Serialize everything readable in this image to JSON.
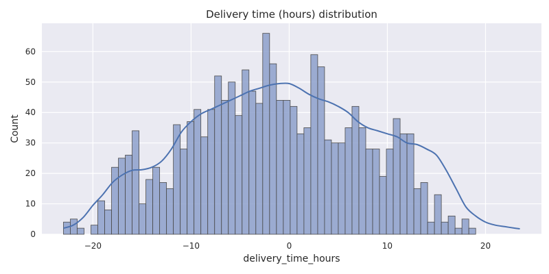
{
  "chart_data": {
    "type": "bar",
    "subtype": "histogram_with_kde",
    "title": "Delivery time (hours) distribution",
    "xlabel": "delivery_time_hours",
    "ylabel": "Count",
    "xlim": [
      -25.2,
      25.7
    ],
    "ylim": [
      0,
      69.3
    ],
    "xticks": [
      -20,
      -10,
      0,
      10,
      20
    ],
    "xtick_labels": [
      "−20",
      "−10",
      "0",
      "10",
      "20"
    ],
    "yticks": [
      0,
      10,
      20,
      30,
      40,
      50,
      60
    ],
    "grid": true,
    "legend": "none",
    "bin_start": -23.0,
    "bin_width": 0.7,
    "counts": [
      4,
      5,
      2,
      0,
      3,
      11,
      8,
      22,
      25,
      26,
      34,
      10,
      18,
      22,
      17,
      15,
      36,
      28,
      37,
      41,
      32,
      41,
      52,
      44,
      50,
      39,
      54,
      47,
      43,
      66,
      56,
      44,
      44,
      42,
      33,
      35,
      59,
      55,
      31,
      30,
      30,
      35,
      42,
      35,
      28,
      28,
      19,
      28,
      38,
      33,
      33,
      15,
      17,
      4,
      13,
      4,
      6,
      2,
      5,
      2
    ],
    "kde": {
      "x": [
        -23,
        -22,
        -21,
        -20,
        -19,
        -18,
        -17,
        -16,
        -15,
        -14,
        -13,
        -12,
        -11,
        -10,
        -9,
        -8,
        -7,
        -6,
        -5,
        -4,
        -3,
        -2,
        -1,
        0,
        1,
        2,
        3,
        4,
        5,
        6,
        7,
        8,
        9,
        10,
        11,
        12,
        13,
        14,
        15,
        16,
        17,
        18,
        19,
        20,
        21,
        22,
        23,
        23.5
      ],
      "y": [
        2,
        3,
        5.5,
        9.5,
        13,
        17,
        19.5,
        21,
        21.2,
        22,
        24,
        28,
        33.5,
        37,
        39.5,
        41,
        42.5,
        44,
        45.5,
        47,
        48,
        49,
        49.5,
        49.5,
        48,
        46,
        44.5,
        43.5,
        42,
        40,
        37,
        35,
        34,
        33,
        32,
        30,
        29.5,
        28,
        26,
        21,
        15,
        9,
        6,
        4,
        3,
        2.5,
        2,
        1.8
      ]
    },
    "colors": {
      "bar_fill": "#8da0cb",
      "bar_edge": "#4a4a4a",
      "kde_line": "#4c72b0",
      "background": "#eaeaf2"
    }
  }
}
